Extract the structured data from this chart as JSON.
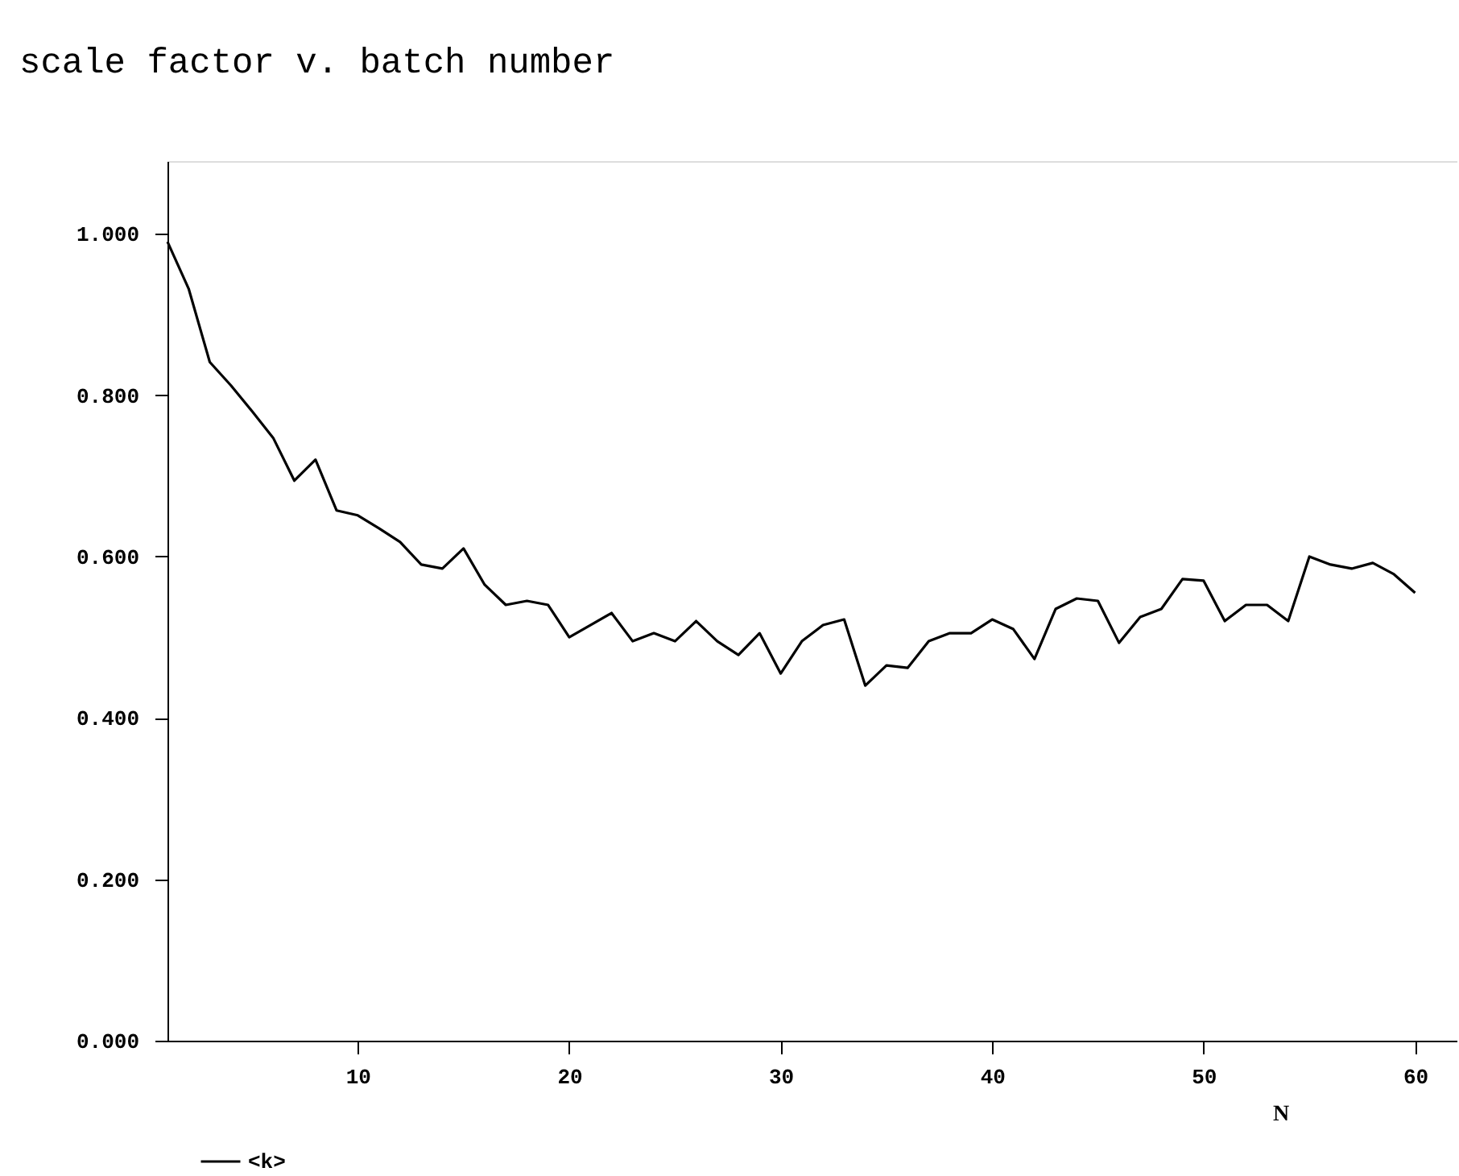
{
  "chart_data": {
    "type": "line",
    "title": "scale factor v. batch number",
    "xlabel": "N",
    "x": [
      1,
      2,
      3,
      4,
      5,
      6,
      7,
      8,
      9,
      10,
      11,
      12,
      13,
      14,
      15,
      16,
      17,
      18,
      19,
      20,
      21,
      22,
      23,
      24,
      25,
      26,
      27,
      28,
      29,
      30,
      31,
      32,
      33,
      34,
      35,
      36,
      37,
      38,
      39,
      40,
      41,
      42,
      43,
      44,
      45,
      46,
      47,
      48,
      49,
      50,
      51,
      52,
      53,
      54,
      55,
      56,
      57,
      58,
      59,
      60
    ],
    "series": [
      {
        "name": "<k>",
        "color": "#000000",
        "values": [
          0.99,
          0.932,
          0.841,
          0.812,
          0.78,
          0.747,
          0.694,
          0.72,
          0.657,
          0.651,
          0.635,
          0.618,
          0.59,
          0.585,
          0.61,
          0.565,
          0.54,
          0.545,
          0.54,
          0.5,
          0.515,
          0.53,
          0.495,
          0.505,
          0.495,
          0.52,
          0.495,
          0.478,
          0.505,
          0.455,
          0.495,
          0.515,
          0.522,
          0.44,
          0.465,
          0.462,
          0.495,
          0.505,
          0.505,
          0.522,
          0.51,
          0.473,
          0.535,
          0.548,
          0.545,
          0.493,
          0.525,
          0.535,
          0.572,
          0.57,
          0.52,
          0.54,
          0.54,
          0.52,
          0.6,
          0.59,
          0.585,
          0.592,
          0.578,
          0.555
        ]
      }
    ],
    "xlim": [
      1,
      62
    ],
    "xticks": [
      10,
      20,
      30,
      40,
      50,
      60
    ],
    "ylim": [
      0,
      1.09
    ],
    "yticks": [
      {
        "value": 0,
        "label": "0.000"
      },
      {
        "value": 0.2,
        "label": "0.200"
      },
      {
        "value": 0.4,
        "label": "0.400"
      },
      {
        "value": 0.6,
        "label": "0.600"
      },
      {
        "value": 0.8,
        "label": "0.800"
      },
      {
        "value": 1.0,
        "label": "1.000"
      }
    ],
    "grid": false,
    "legend": "bottom left",
    "marker": "none",
    "line_style": "solid"
  }
}
